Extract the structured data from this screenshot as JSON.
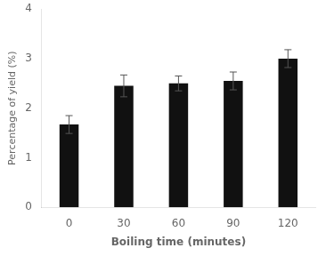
{
  "chart_data": {
    "type": "bar",
    "categories": [
      "0",
      "30",
      "60",
      "90",
      "120"
    ],
    "values": [
      1.67,
      2.45,
      2.5,
      2.55,
      3.0
    ],
    "errors": [
      0.18,
      0.22,
      0.15,
      0.18,
      0.18
    ],
    "color": "#111111",
    "xlabel": "Boiling time (minutes)",
    "ylabel": "Percentage of yield (%)",
    "ylim": [
      0,
      4
    ],
    "yticks": [
      0,
      1,
      2,
      3,
      4
    ],
    "grid": false
  }
}
